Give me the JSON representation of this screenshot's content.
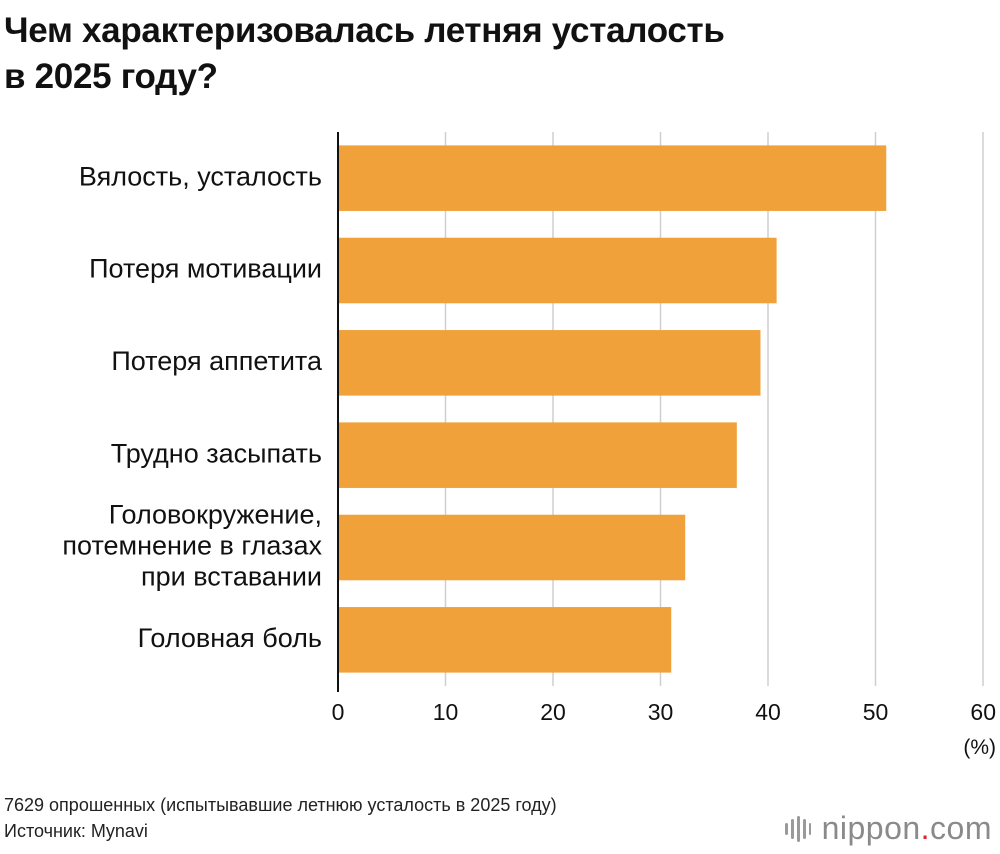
{
  "title_lines": [
    "Чем характеризовалась летняя усталость",
    "в 2025 году?"
  ],
  "chart_data": {
    "type": "bar",
    "orientation": "horizontal",
    "categories": [
      [
        "Вялость, усталость"
      ],
      [
        "Потеря мотивации"
      ],
      [
        "Потеря аппетита"
      ],
      [
        "Трудно засыпать"
      ],
      [
        "Головокружение,",
        "потемнение в глазах",
        "при вставании"
      ],
      [
        "Головная боль"
      ]
    ],
    "values": [
      51.0,
      40.8,
      39.3,
      37.1,
      32.3,
      31.0
    ],
    "xlim": [
      0,
      60
    ],
    "xticks": [
      "0",
      "10",
      "20",
      "30",
      "40",
      "50",
      "60"
    ],
    "unit": "(%)",
    "grid": true,
    "bar_color": "#f0a13a",
    "grid_color": "#cfcfcf"
  },
  "footer": {
    "note": "7629 опрошенных (испытывавшие летнюю усталость в 2025 году)",
    "source": "Источник: Mynavi"
  },
  "logo": {
    "text_main": "nippon",
    "text_dot": ".",
    "text_suffix": "com",
    "accent_color": "#d9232e"
  }
}
